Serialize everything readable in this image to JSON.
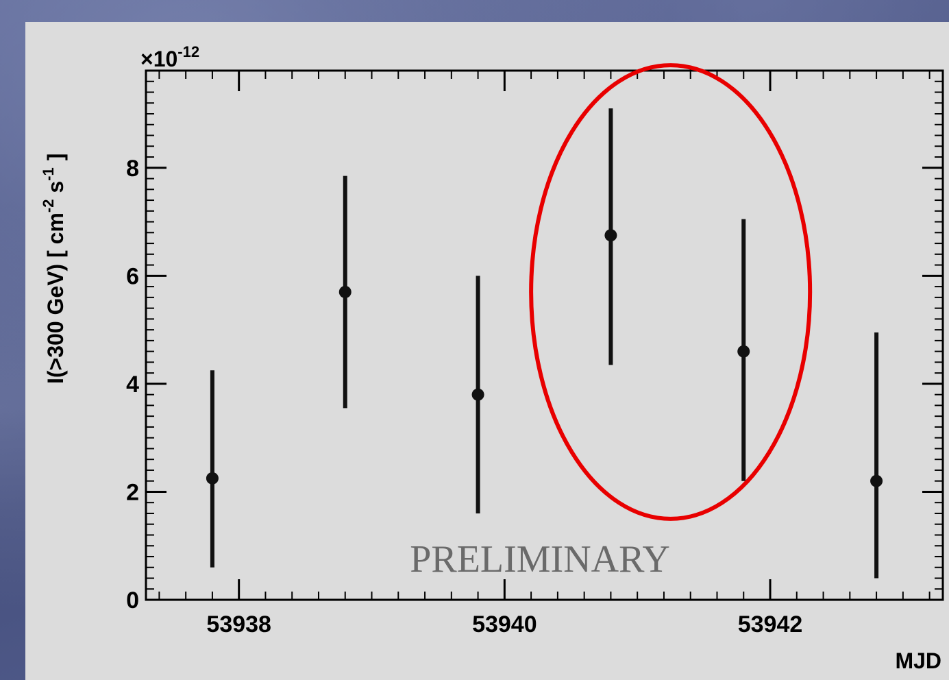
{
  "chart_data": {
    "type": "scatter",
    "exponent_label": "×10",
    "exponent_power": "-12",
    "ylabel_main": "I(>300 GeV) [ cm",
    "ylabel_exp1": "-2",
    "ylabel_mid": " s",
    "ylabel_exp2": "-1",
    "ylabel_end": "]",
    "xlabel": "MJD",
    "watermark": "PRELIMINARY",
    "xlim": [
      53937.3,
      53943.3
    ],
    "ylim": [
      0,
      9.8
    ],
    "x_ticks": [
      "53938",
      "53940",
      "53942"
    ],
    "x_tick_values": [
      53938,
      53940,
      53942
    ],
    "y_ticks": [
      "0",
      "2",
      "4",
      "6",
      "8"
    ],
    "y_tick_values": [
      0,
      2,
      4,
      6,
      8
    ],
    "points": [
      {
        "x": 53937.8,
        "y": 2.25,
        "ylow": 0.6,
        "yhigh": 4.25
      },
      {
        "x": 53938.8,
        "y": 5.7,
        "ylow": 3.55,
        "yhigh": 7.85
      },
      {
        "x": 53939.8,
        "y": 3.8,
        "ylow": 1.6,
        "yhigh": 6.0
      },
      {
        "x": 53940.8,
        "y": 6.75,
        "ylow": 4.35,
        "yhigh": 9.1
      },
      {
        "x": 53941.8,
        "y": 4.6,
        "ylow": 2.2,
        "yhigh": 7.05
      },
      {
        "x": 53942.8,
        "y": 2.2,
        "ylow": 0.4,
        "yhigh": 4.95
      }
    ],
    "highlight": {
      "x_center": 53941.25,
      "y_center": 5.7,
      "x_radius": 1.05,
      "y_radius": 4.2,
      "color": "#e80000"
    },
    "grid": false
  }
}
